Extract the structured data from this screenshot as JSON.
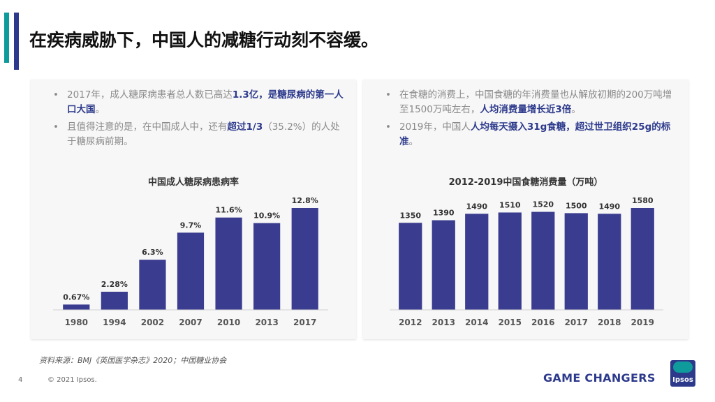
{
  "title": "在疾病威胁下，中国人的减糖行动刻不容缓。",
  "left_panel": {
    "bullets": [
      {
        "parts": [
          {
            "text": "2017年，成人糖尿病患者总人数已高达",
            "hl": false
          },
          {
            "text": "1.3亿，是糖尿病的第一人口大国",
            "hl": true
          },
          {
            "text": "。",
            "hl": false
          }
        ]
      },
      {
        "parts": [
          {
            "text": "且值得注意的是，在中国成人中，还有",
            "hl": false
          },
          {
            "text": "超过1/3",
            "hl": true
          },
          {
            "text": "（35.2%）的人处于糖尿病前期。",
            "hl": false
          }
        ]
      }
    ]
  },
  "right_panel": {
    "bullets": [
      {
        "parts": [
          {
            "text": "在食糖的消费上，中国食糖的年消费量也从解放初期的200万吨增至1500万吨左右，",
            "hl": false
          },
          {
            "text": "人均消费量增长近3倍",
            "hl": true
          },
          {
            "text": "。",
            "hl": false
          }
        ]
      },
      {
        "parts": [
          {
            "text": "2019年，中国人",
            "hl": false
          },
          {
            "text": "人均每天摄入31g食糖，超过世卫组织25g的标准",
            "hl": true
          },
          {
            "text": "。",
            "hl": false
          }
        ]
      }
    ]
  },
  "chart_data": [
    {
      "type": "bar",
      "title": "中国成人糖尿病患病率",
      "categories": [
        "1980",
        "1994",
        "2002",
        "2007",
        "2010",
        "2013",
        "2017"
      ],
      "values": [
        0.67,
        2.28,
        6.3,
        9.7,
        11.6,
        10.9,
        12.8
      ],
      "labels": [
        "0.67%",
        "2.28%",
        "6.3%",
        "9.7%",
        "11.6%",
        "10.9%",
        "12.8%"
      ],
      "unit": "%",
      "ylim": [
        0,
        12.8
      ],
      "xlabel": "",
      "ylabel": "",
      "color": "#3a3d8f"
    },
    {
      "type": "bar",
      "title": "2012-2019中国食糖消费量（万吨）",
      "categories": [
        "2012",
        "2013",
        "2014",
        "2015",
        "2016",
        "2017",
        "2018",
        "2019"
      ],
      "values": [
        1350,
        1390,
        1490,
        1510,
        1520,
        1500,
        1490,
        1580
      ],
      "labels": [
        "1350",
        "1390",
        "1490",
        "1510",
        "1520",
        "1500",
        "1490",
        "1580"
      ],
      "unit": "万吨",
      "ylim": [
        0,
        1580
      ],
      "xlabel": "",
      "ylabel": "",
      "color": "#3a3d8f"
    }
  ],
  "footer": {
    "source": "资料来源：BMJ《英国医学杂志》2020；中国糖业协会",
    "page_number": "4",
    "copyright": "© 2021 Ipsos.",
    "tagline": "GAME CHANGERS",
    "logo_text": "Ipsos"
  },
  "colors": {
    "accent_teal": "#0f9b9b",
    "accent_navy": "#2d3a8c",
    "bar": "#3a3d8f"
  }
}
